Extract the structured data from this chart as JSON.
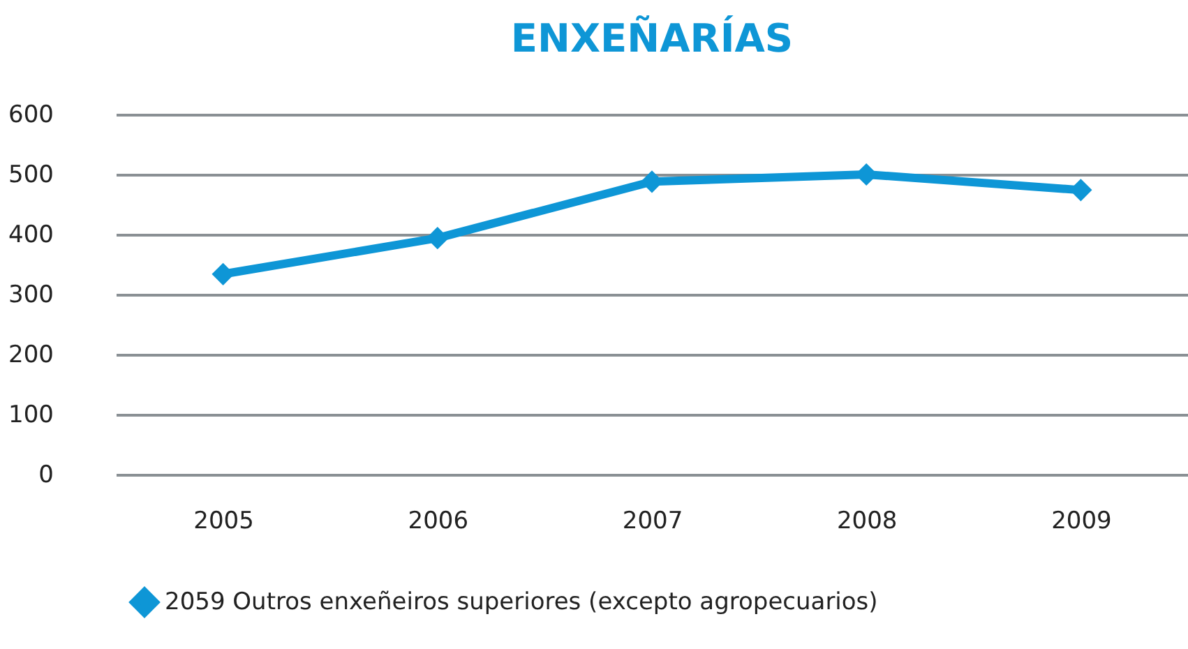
{
  "chart_data": {
    "type": "line",
    "title": "ENXEÑARÍAS",
    "categories": [
      "2005",
      "2006",
      "2007",
      "2008",
      "2009"
    ],
    "series": [
      {
        "name": "2059 Outros enxeñeiros superiores (excepto agropecuarios)",
        "color": "#0e96d6",
        "values": [
          334,
          394,
          488,
          500,
          474
        ]
      }
    ],
    "ylim": [
      0,
      600
    ],
    "yticks": [
      0,
      100,
      200,
      300,
      400,
      500,
      600
    ],
    "grid": "y",
    "legend": "bottom left",
    "marker": "diamond",
    "line_style": "solid"
  }
}
